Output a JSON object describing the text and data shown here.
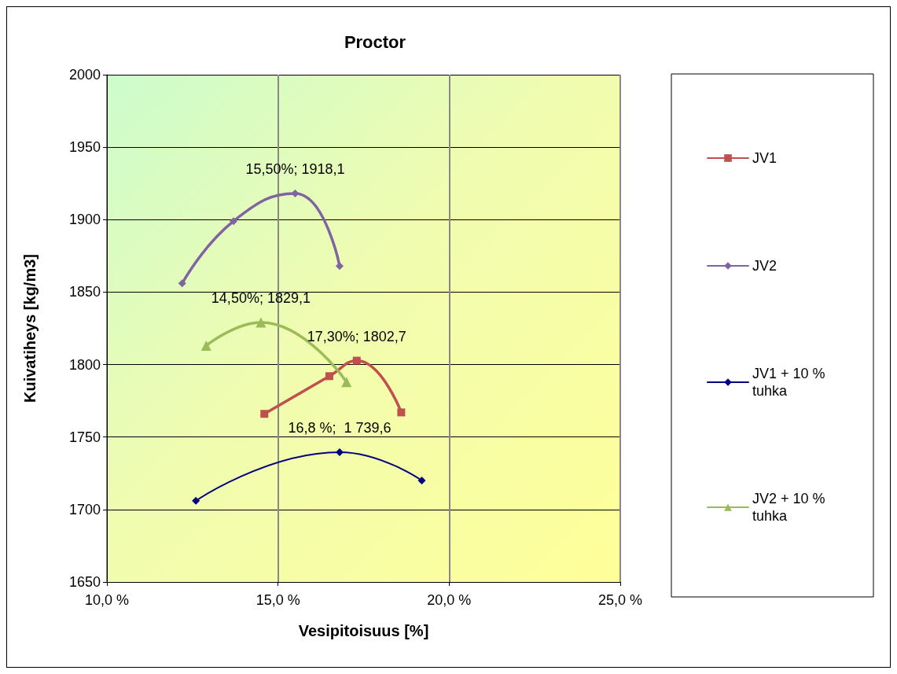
{
  "chart_data": {
    "type": "line",
    "title": "Proctor",
    "xlabel": "Vesipitoisuus [%]",
    "ylabel": "Kuivatiheys [kg/m3]",
    "xlim": [
      10,
      25
    ],
    "xticks": [
      {
        "value": 10,
        "label": "10,0 %"
      },
      {
        "value": 15,
        "label": "15,0 %"
      },
      {
        "value": 20,
        "label": "20,0 %"
      },
      {
        "value": 25,
        "label": "25,0 %"
      }
    ],
    "ylim": [
      1650,
      2000
    ],
    "yticks": [
      1650,
      1700,
      1750,
      1800,
      1850,
      1900,
      1950,
      2000
    ],
    "grid": true,
    "legend": "right",
    "line_style": "solid",
    "series": [
      {
        "name": "JV1",
        "color": "#c0504d",
        "marker": "square",
        "x": [
          14.6,
          16.5,
          17.3,
          18.6
        ],
        "values": [
          1766,
          1792,
          1802.7,
          1767
        ]
      },
      {
        "name": "JV2",
        "color": "#8064a2",
        "marker": "diamond",
        "x": [
          12.2,
          13.7,
          15.5,
          16.8
        ],
        "values": [
          1856,
          1899,
          1918.1,
          1868
        ]
      },
      {
        "name": "JV1 + 10 % tuhka",
        "color": "#000080",
        "marker": "diamond",
        "x": [
          12.6,
          16.8,
          19.2
        ],
        "values": [
          1706,
          1739.6,
          1720
        ]
      },
      {
        "name": "JV2 + 10 % tuhka",
        "color": "#9bbb59",
        "marker": "triangle",
        "x": [
          12.9,
          14.5,
          17.0
        ],
        "values": [
          1813,
          1829.1,
          1788
        ]
      }
    ],
    "annotations": [
      {
        "text": "17,30%; 1802,7",
        "x": 17.3,
        "y": 1802.7
      },
      {
        "text": "15,50%; 1918,1",
        "x": 15.5,
        "y": 1918.1
      },
      {
        "text": "16,8 %;  1 739,6",
        "x": 16.8,
        "y": 1739.6
      },
      {
        "text": "14,50%; 1829,1",
        "x": 14.5,
        "y": 1829.1
      }
    ]
  }
}
